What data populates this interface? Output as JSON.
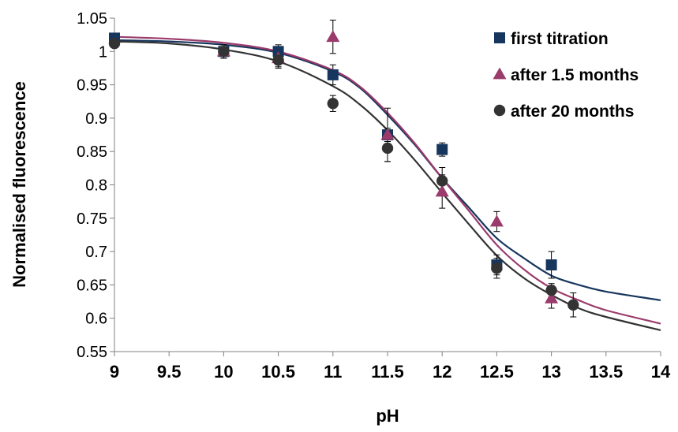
{
  "chart_data": {
    "type": "scatter",
    "xlabel": "pH",
    "ylabel": "Normalised fluorescence",
    "xlim": [
      9,
      14
    ],
    "ylim": [
      0.55,
      1.05
    ],
    "x_ticks": [
      "9",
      "9.5",
      "10",
      "10.5",
      "11",
      "11.5",
      "12",
      "12.5",
      "13",
      "13.5",
      "14"
    ],
    "y_ticks": [
      "0.55",
      "0.6",
      "0.65",
      "0.7",
      "0.75",
      "0.8",
      "0.85",
      "0.9",
      "0.95",
      "1",
      "1.05"
    ],
    "grid": false,
    "legend_position": "top-right",
    "series": [
      {
        "name": "first titration",
        "marker": "square",
        "color": "#17365d",
        "x": [
          9,
          10,
          10.5,
          11,
          11.5,
          12,
          12.5,
          13
        ],
        "y": [
          1.02,
          1.0,
          1.0,
          0.965,
          0.875,
          0.853,
          0.68,
          0.68
        ],
        "error": [
          0.005,
          0.005,
          0.01,
          0.015,
          0.01,
          0.01,
          0.015,
          0.02
        ],
        "fit": [
          [
            9,
            1.017
          ],
          [
            9.5,
            1.015
          ],
          [
            10,
            1.01
          ],
          [
            10.5,
            0.998
          ],
          [
            11,
            0.97
          ],
          [
            11.25,
            0.945
          ],
          [
            11.5,
            0.905
          ],
          [
            11.75,
            0.86
          ],
          [
            12,
            0.81
          ],
          [
            12.25,
            0.765
          ],
          [
            12.5,
            0.72
          ],
          [
            12.75,
            0.69
          ],
          [
            13,
            0.664
          ],
          [
            13.25,
            0.65
          ],
          [
            13.5,
            0.64
          ],
          [
            14,
            0.627
          ]
        ]
      },
      {
        "name": "after 1.5 months",
        "marker": "triangle",
        "color": "#9b3b6b",
        "x": [
          10,
          10.5,
          11,
          11.5,
          12,
          12.5,
          13
        ],
        "y": [
          1.0,
          0.99,
          1.022,
          0.875,
          0.79,
          0.745,
          0.63
        ],
        "error": [
          0.01,
          0.015,
          0.025,
          0.04,
          0.025,
          0.015,
          0.015
        ],
        "fit": [
          [
            9,
            1.022
          ],
          [
            9.5,
            1.019
          ],
          [
            10,
            1.013
          ],
          [
            10.5,
            1.0
          ],
          [
            11,
            0.972
          ],
          [
            11.25,
            0.947
          ],
          [
            11.5,
            0.908
          ],
          [
            11.75,
            0.862
          ],
          [
            12,
            0.81
          ],
          [
            12.25,
            0.76
          ],
          [
            12.5,
            0.71
          ],
          [
            12.75,
            0.673
          ],
          [
            13,
            0.645
          ],
          [
            13.25,
            0.627
          ],
          [
            13.5,
            0.612
          ],
          [
            14,
            0.592
          ]
        ]
      },
      {
        "name": "after 20 months",
        "marker": "circle",
        "color": "#333333",
        "x": [
          9,
          10,
          10.5,
          11,
          11.5,
          12,
          12.5,
          13,
          13.2
        ],
        "y": [
          1.012,
          1.0,
          0.987,
          0.922,
          0.855,
          0.806,
          0.675,
          0.642,
          0.62
        ],
        "error": [
          0.005,
          0.01,
          0.01,
          0.012,
          0.02,
          0.02,
          0.015,
          0.01,
          0.018
        ],
        "fit": [
          [
            9,
            1.015
          ],
          [
            9.5,
            1.012
          ],
          [
            10,
            1.003
          ],
          [
            10.5,
            0.985
          ],
          [
            11,
            0.948
          ],
          [
            11.25,
            0.92
          ],
          [
            11.5,
            0.882
          ],
          [
            11.75,
            0.837
          ],
          [
            12,
            0.788
          ],
          [
            12.25,
            0.74
          ],
          [
            12.5,
            0.694
          ],
          [
            12.75,
            0.66
          ],
          [
            13,
            0.635
          ],
          [
            13.25,
            0.615
          ],
          [
            13.5,
            0.602
          ],
          [
            14,
            0.582
          ]
        ]
      }
    ]
  }
}
